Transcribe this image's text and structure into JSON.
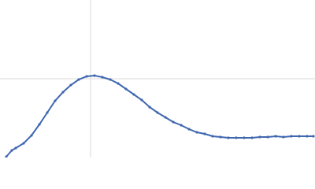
{
  "chart_data": {
    "type": "scatter",
    "x": [
      8,
      15,
      20,
      30,
      40,
      50,
      60,
      70,
      80,
      90,
      100,
      110,
      120,
      130,
      140,
      150,
      160,
      170,
      180,
      190,
      200,
      210,
      220,
      230,
      240,
      250,
      260,
      270,
      280,
      290,
      300,
      310,
      320,
      330,
      340,
      350,
      360,
      370,
      380,
      390,
      398
    ],
    "y": [
      1,
      9,
      12,
      18,
      28,
      42,
      57,
      72,
      83,
      92,
      99,
      103,
      104,
      102,
      99,
      94,
      87,
      80,
      73,
      64,
      57,
      51,
      45,
      41,
      36,
      32,
      30,
      27,
      26,
      25,
      25,
      25,
      25,
      26,
      26,
      27,
      26,
      27,
      27,
      27,
      27
    ],
    "color": "#3f67b0",
    "xlim": [
      0,
      400
    ],
    "ylim": [
      0,
      200
    ],
    "xticks": [
      115
    ],
    "yticks": [
      100
    ],
    "grid": true
  }
}
